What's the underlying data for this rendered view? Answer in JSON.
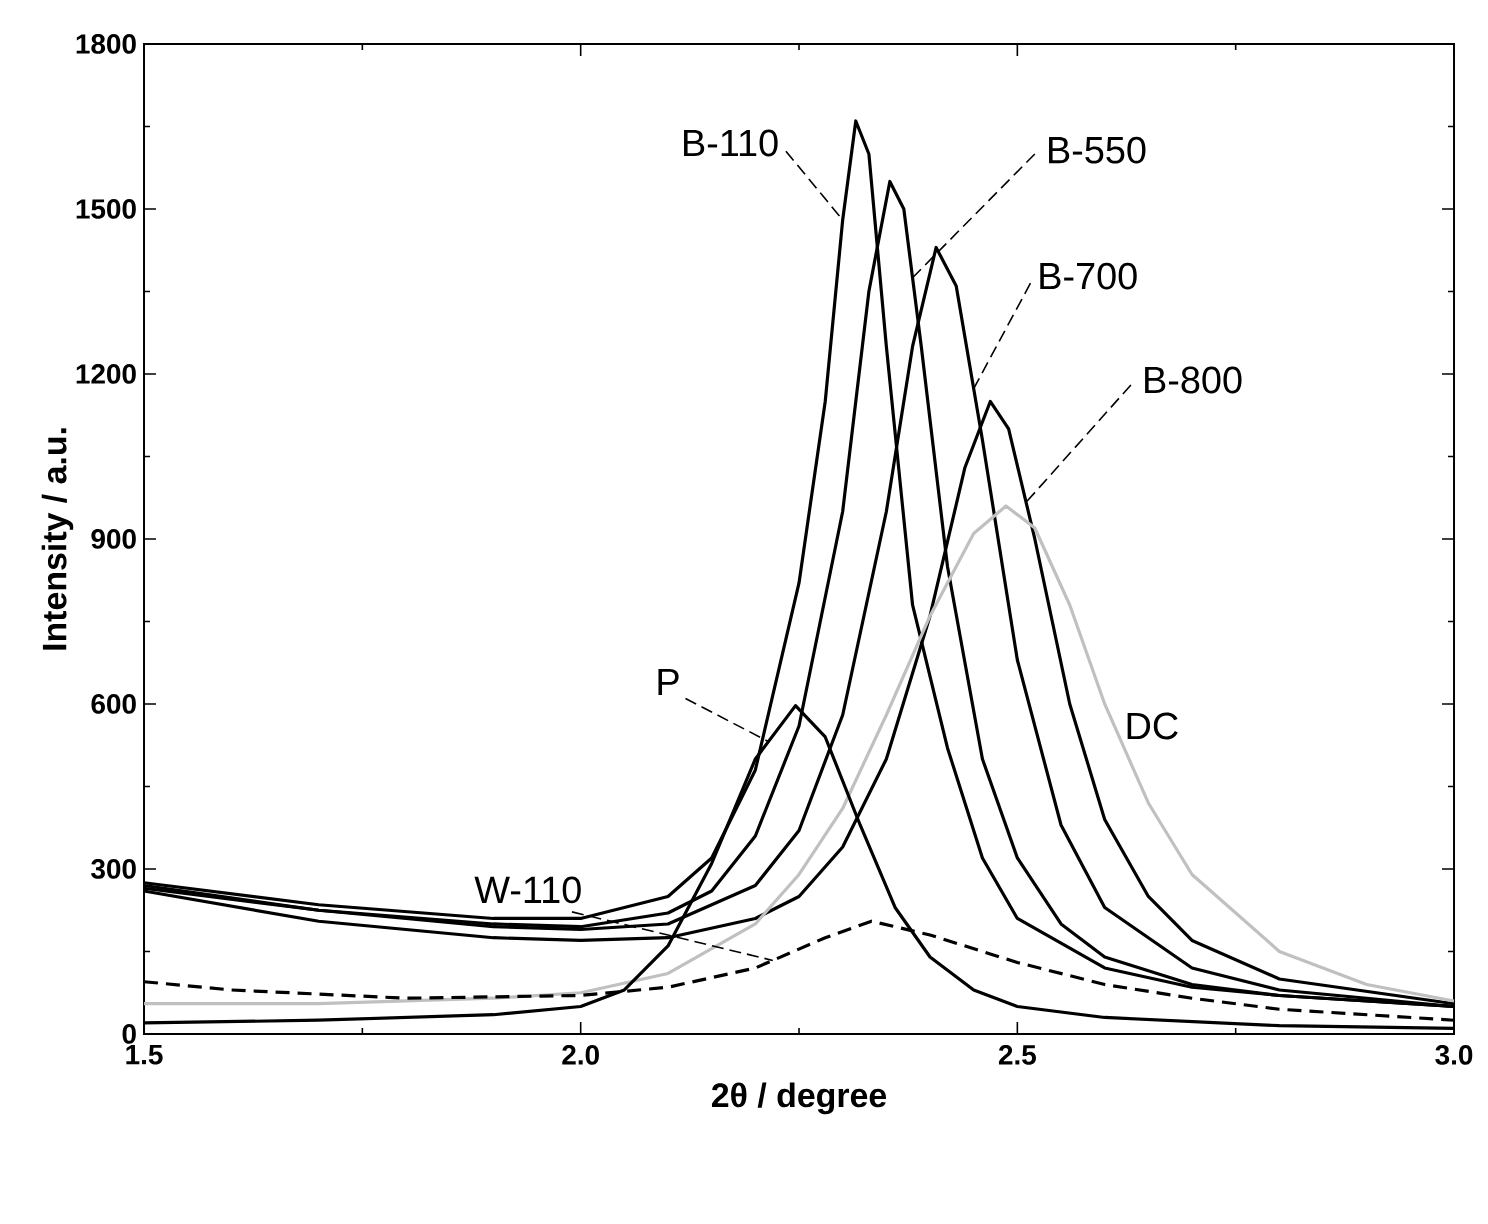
{
  "chart_data": {
    "type": "line",
    "xlabel": "2θ / degree",
    "ylabel": "Intensity / a.u.",
    "xlim": [
      1.5,
      3.0
    ],
    "ylim": [
      0,
      1800
    ],
    "xticks": [
      1.5,
      {
        "value": 2,
        "label": "2.0"
      },
      2.5,
      {
        "value": 3,
        "label": "3.0"
      }
    ],
    "yticks": [
      0,
      300,
      600,
      900,
      1200,
      1500,
      1800
    ],
    "grid": false,
    "legend": false,
    "marker": "none",
    "series": [
      {
        "name": "B-110",
        "color": "#000000",
        "x": [
          1.5,
          1.7,
          1.9,
          2.0,
          2.1,
          2.15,
          2.2,
          2.25,
          2.28,
          2.3,
          2.315,
          2.33,
          2.35,
          2.38,
          2.42,
          2.46,
          2.5,
          2.6,
          2.7,
          2.8,
          3.0
        ],
        "values": [
          275,
          235,
          210,
          210,
          250,
          320,
          480,
          820,
          1150,
          1480,
          1660,
          1600,
          1250,
          780,
          520,
          320,
          210,
          120,
          85,
          70,
          50
        ]
      },
      {
        "name": "B-550",
        "color": "#000000",
        "x": [
          1.5,
          1.7,
          1.9,
          2.0,
          2.1,
          2.15,
          2.2,
          2.25,
          2.3,
          2.33,
          2.354,
          2.37,
          2.39,
          2.42,
          2.46,
          2.5,
          2.55,
          2.6,
          2.7,
          2.8,
          3.0
        ],
        "values": [
          265,
          225,
          200,
          195,
          220,
          260,
          360,
          560,
          950,
          1350,
          1550,
          1500,
          1250,
          850,
          500,
          320,
          200,
          140,
          90,
          70,
          50
        ]
      },
      {
        "name": "B-700",
        "color": "#000000",
        "x": [
          1.5,
          1.7,
          1.9,
          2.0,
          2.1,
          2.2,
          2.25,
          2.3,
          2.35,
          2.38,
          2.407,
          2.43,
          2.46,
          2.5,
          2.55,
          2.6,
          2.7,
          2.8,
          3.0
        ],
        "values": [
          270,
          225,
          195,
          190,
          200,
          270,
          370,
          580,
          950,
          1250,
          1430,
          1360,
          1080,
          680,
          380,
          230,
          120,
          80,
          50
        ]
      },
      {
        "name": "B-800",
        "color": "#000000",
        "x": [
          1.5,
          1.7,
          1.9,
          2.0,
          2.1,
          2.2,
          2.25,
          2.3,
          2.35,
          2.4,
          2.44,
          2.469,
          2.49,
          2.52,
          2.56,
          2.6,
          2.65,
          2.7,
          2.8,
          3.0
        ],
        "values": [
          260,
          205,
          175,
          170,
          175,
          210,
          250,
          340,
          500,
          760,
          1030,
          1150,
          1100,
          900,
          600,
          390,
          250,
          170,
          100,
          55
        ]
      },
      {
        "name": "DC",
        "color": "#c0c0c0",
        "x": [
          1.5,
          1.7,
          1.9,
          2.0,
          2.1,
          2.2,
          2.25,
          2.3,
          2.35,
          2.4,
          2.45,
          2.487,
          2.52,
          2.56,
          2.6,
          2.65,
          2.7,
          2.8,
          2.9,
          3.0
        ],
        "values": [
          55,
          55,
          65,
          75,
          110,
          200,
          290,
          410,
          580,
          760,
          910,
          960,
          920,
          780,
          600,
          420,
          290,
          150,
          90,
          60
        ]
      },
      {
        "name": "P",
        "color": "#000000",
        "x": [
          1.5,
          1.7,
          1.9,
          2.0,
          2.05,
          2.1,
          2.15,
          2.2,
          2.246,
          2.28,
          2.32,
          2.36,
          2.4,
          2.45,
          2.5,
          2.6,
          2.8,
          3.0
        ],
        "values": [
          20,
          25,
          35,
          50,
          80,
          160,
          310,
          500,
          597,
          540,
          380,
          230,
          140,
          80,
          50,
          30,
          15,
          10
        ]
      },
      {
        "name": "W-110",
        "color": "#000000",
        "line_style": "dashed",
        "x": [
          1.5,
          1.6,
          1.8,
          2.0,
          2.1,
          2.2,
          2.28,
          2.333,
          2.4,
          2.5,
          2.6,
          2.7,
          2.8,
          3.0
        ],
        "values": [
          95,
          80,
          65,
          70,
          85,
          120,
          175,
          205,
          180,
          130,
          90,
          65,
          45,
          25
        ]
      }
    ]
  }
}
